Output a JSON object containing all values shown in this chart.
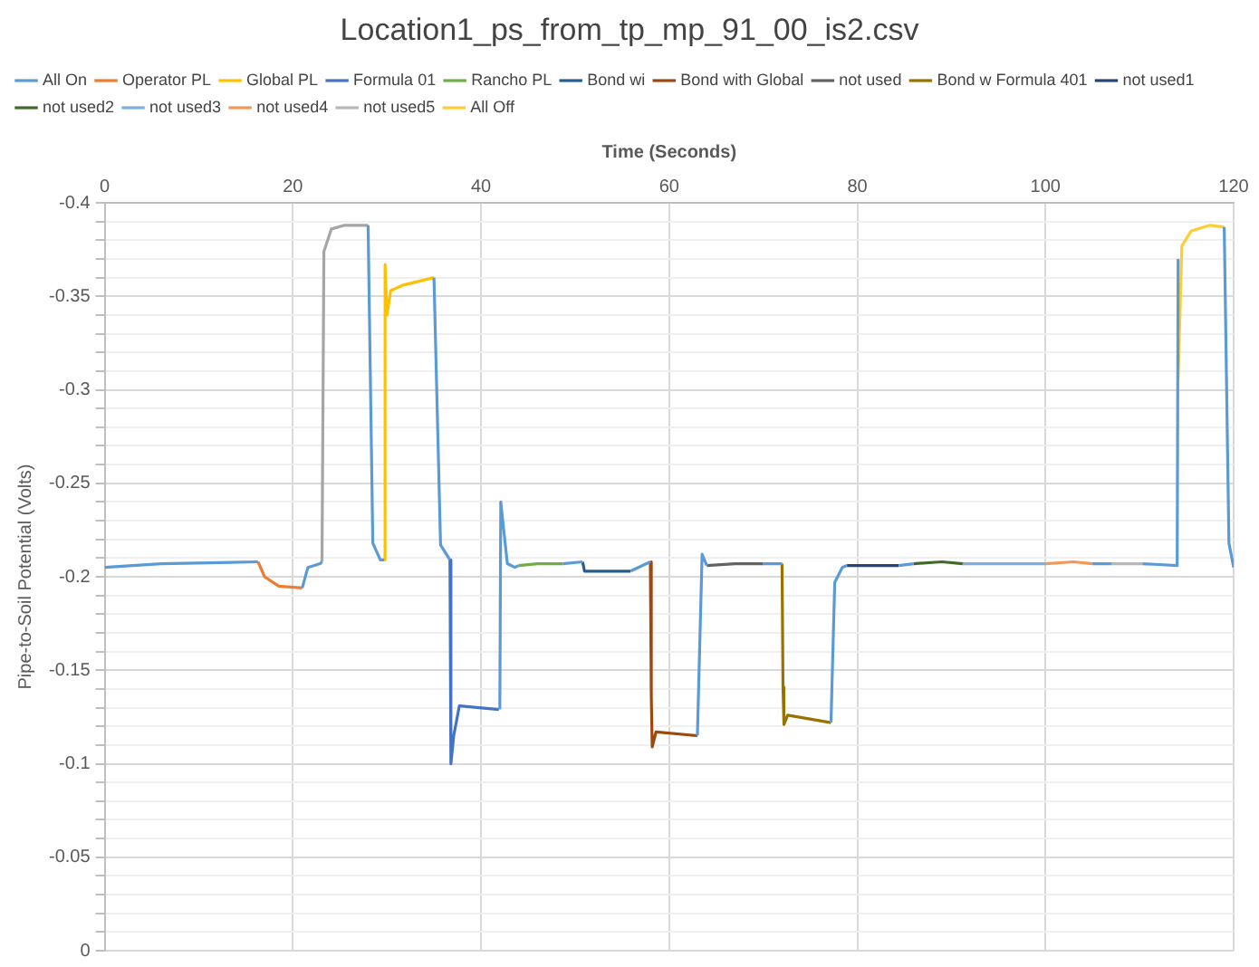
{
  "chart_data": {
    "type": "line",
    "title": "Location1_ps_from_tp_mp_91_00_is2.csv",
    "xlabel": "Time (Seconds)",
    "ylabel": "Pipe-to-Soil Potential (Volts)",
    "xlim": [
      0,
      120
    ],
    "xticks": [
      0,
      20,
      40,
      60,
      80,
      100,
      120
    ],
    "ylim": [
      0,
      -0.4
    ],
    "yticks": [
      0,
      {
        "value": -0.01,
        "label": null
      },
      {
        "value": -0.02,
        "label": null
      },
      {
        "value": -0.03,
        "label": null
      },
      {
        "value": -0.04,
        "label": null
      },
      -0.05,
      {
        "value": -0.06,
        "label": null
      },
      {
        "value": -0.07,
        "label": null
      },
      {
        "value": -0.08,
        "label": null
      },
      {
        "value": -0.09,
        "label": null
      },
      -0.1,
      {
        "value": -0.11,
        "label": null
      },
      {
        "value": -0.12,
        "label": null
      },
      {
        "value": -0.13,
        "label": null
      },
      {
        "value": -0.14,
        "label": null
      },
      -0.15,
      {
        "value": -0.16,
        "label": null
      },
      {
        "value": -0.17,
        "label": null
      },
      {
        "value": -0.18,
        "label": null
      },
      {
        "value": -0.19,
        "label": null
      },
      -0.2,
      {
        "value": -0.21,
        "label": null
      },
      {
        "value": -0.22,
        "label": null
      },
      {
        "value": -0.23,
        "label": null
      },
      {
        "value": -0.24,
        "label": null
      },
      -0.25,
      {
        "value": -0.26,
        "label": null
      },
      {
        "value": -0.27,
        "label": null
      },
      {
        "value": -0.28,
        "label": null
      },
      {
        "value": -0.29,
        "label": null
      },
      -0.3,
      {
        "value": -0.31,
        "label": null
      },
      {
        "value": -0.32,
        "label": null
      },
      {
        "value": -0.33,
        "label": null
      },
      {
        "value": -0.34,
        "label": null
      },
      -0.35,
      {
        "value": -0.36,
        "label": null
      },
      {
        "value": -0.37,
        "label": null
      },
      {
        "value": -0.38,
        "label": null
      },
      {
        "value": -0.39,
        "label": null
      },
      -0.4
    ],
    "grid": true,
    "legend": "top",
    "marker": "none",
    "line_style": "solid",
    "series": [
      {
        "name": "All On",
        "color": "#5b9bd5",
        "x": [
          0,
          6,
          16.3,
          null,
          21,
          21.6,
          22.9,
          23.1,
          null,
          28,
          28.5,
          29.3,
          29.7,
          null,
          35,
          35.7,
          36.7,
          null,
          42,
          42.1,
          42.8,
          43.6,
          44,
          null,
          48.7,
          50.8,
          null,
          55.9,
          58,
          null,
          63,
          63.5,
          64,
          null,
          70,
          72,
          null,
          77.2,
          77.6,
          78.4,
          78.9,
          null,
          84.4,
          86,
          null,
          105,
          107,
          null,
          110.3,
          114,
          114.1,
          null,
          119,
          119.5,
          120
        ],
        "values": [
          -0.205,
          -0.207,
          -0.208,
          null,
          -0.194,
          -0.205,
          -0.207,
          -0.208,
          null,
          -0.388,
          -0.218,
          -0.209,
          -0.209,
          null,
          -0.36,
          -0.217,
          -0.209,
          null,
          -0.129,
          -0.24,
          -0.207,
          -0.205,
          -0.206,
          null,
          -0.207,
          -0.208,
          null,
          -0.203,
          -0.208,
          null,
          -0.115,
          -0.212,
          -0.206,
          null,
          -0.207,
          -0.207,
          null,
          -0.122,
          -0.197,
          -0.205,
          -0.206,
          null,
          -0.206,
          -0.207,
          null,
          -0.207,
          -0.207,
          null,
          -0.207,
          -0.206,
          -0.37,
          null,
          -0.387,
          -0.218,
          -0.205
        ]
      },
      {
        "name": "Operator PL",
        "color": "#ed7d31",
        "x": [
          16.3,
          17,
          18.5,
          21
        ],
        "values": [
          -0.208,
          -0.2,
          -0.195,
          -0.194
        ]
      },
      {
        "color": "#a5a5a5",
        "x": [
          23.1,
          23.3,
          24.1,
          25.5,
          28
        ],
        "values": [
          -0.208,
          -0.374,
          -0.386,
          -0.388,
          -0.388
        ]
      },
      {
        "name": "Global PL",
        "color": "#ffc000",
        "x": [
          29.7,
          29.8,
          30,
          30.4,
          31.7,
          35
        ],
        "values": [
          -0.209,
          -0.367,
          -0.34,
          -0.353,
          -0.356,
          -0.36
        ]
      },
      {
        "name": "Formula 01",
        "color": "#4472c4",
        "x": [
          36.7,
          36.8,
          37.1,
          37.7,
          39.8,
          41.9,
          42
        ],
        "values": [
          -0.209,
          -0.1,
          -0.115,
          -0.131,
          -0.13,
          -0.129,
          -0.129
        ]
      },
      {
        "name": "Rancho PL",
        "color": "#70ad47",
        "x": [
          44,
          46,
          48.7
        ],
        "values": [
          -0.206,
          -0.207,
          -0.207
        ]
      },
      {
        "name": "Bond wi",
        "color": "#255e91",
        "x": [
          50.8,
          51,
          55.9
        ],
        "values": [
          -0.208,
          -0.203,
          -0.203
        ]
      },
      {
        "name": "Bond with Global",
        "color": "#9e480e",
        "x": [
          58,
          58.1,
          58.2,
          58.6,
          63
        ],
        "values": [
          -0.208,
          -0.136,
          -0.109,
          -0.117,
          -0.115
        ]
      },
      {
        "name": "not used",
        "color": "#636363",
        "x": [
          64,
          67,
          70
        ],
        "values": [
          -0.206,
          -0.207,
          -0.207
        ]
      },
      {
        "name": "Bond w Formula 401",
        "color": "#997300",
        "x": [
          72,
          72.1,
          72.2,
          72.6,
          77.2
        ],
        "values": [
          -0.207,
          -0.141,
          -0.121,
          -0.126,
          -0.122
        ]
      },
      {
        "name": "not used1",
        "color": "#264478",
        "x": [
          78.9,
          82,
          84.4
        ],
        "values": [
          -0.206,
          -0.206,
          -0.206
        ]
      },
      {
        "name": "not used2",
        "color": "#43682b",
        "x": [
          86,
          89,
          91.2
        ],
        "values": [
          -0.207,
          -0.208,
          -0.207
        ]
      },
      {
        "name": "not used3",
        "color": "#7cafdd",
        "x": [
          91.2,
          95,
          100
        ],
        "values": [
          -0.207,
          -0.207,
          -0.207
        ]
      },
      {
        "name": "not used4",
        "color": "#f1975a",
        "x": [
          100,
          103,
          105
        ],
        "values": [
          -0.207,
          -0.208,
          -0.207
        ]
      },
      {
        "name": "not used5",
        "color": "#b7b7b7",
        "x": [
          107,
          109,
          110.3
        ],
        "values": [
          -0.207,
          -0.207,
          -0.207
        ]
      },
      {
        "name": "All Off",
        "color": "#ffcd33",
        "x": [
          114.1,
          114.5,
          115.5,
          117.5,
          119
        ],
        "values": [
          -0.306,
          -0.377,
          -0.385,
          -0.388,
          -0.387
        ]
      }
    ]
  }
}
